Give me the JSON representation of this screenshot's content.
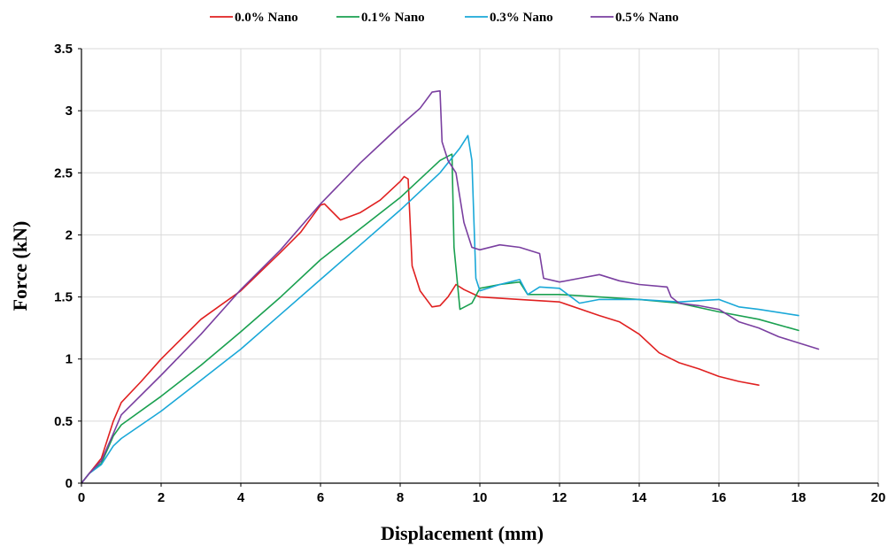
{
  "chart_data": {
    "type": "line",
    "xlabel": "Displacement (mm)",
    "ylabel": "Force (kN)",
    "xlim": [
      0,
      20
    ],
    "ylim": [
      0,
      3.5
    ],
    "x_ticks": [
      0,
      2,
      4,
      6,
      8,
      10,
      12,
      14,
      16,
      18,
      20
    ],
    "y_ticks": [
      0,
      0.5,
      1,
      1.5,
      2,
      2.5,
      3,
      3.5
    ],
    "x_tick_labels": [
      "0",
      "2",
      "4",
      "6",
      "8",
      "10",
      "12",
      "14",
      "16",
      "18",
      "20"
    ],
    "y_tick_labels": [
      "0",
      "0.5",
      "1",
      "1.5",
      "2",
      "2.5",
      "3",
      "3.5"
    ],
    "grid": true,
    "legend_position": "top",
    "series": [
      {
        "name": "0.0% Nano",
        "color": "#e02020",
        "x": [
          0,
          0.2,
          0.5,
          0.8,
          1,
          1.5,
          2,
          3,
          4,
          5,
          5.5,
          6,
          6.1,
          6.5,
          7,
          7.5,
          8,
          8.1,
          8.2,
          8.3,
          8.5,
          8.8,
          9,
          9.2,
          9.4,
          9.6,
          10,
          11,
          12,
          13,
          13.5,
          14,
          14.5,
          15,
          15.5,
          16,
          16.5,
          17
        ],
        "y": [
          0,
          0.08,
          0.2,
          0.5,
          0.65,
          0.82,
          1.0,
          1.32,
          1.55,
          1.86,
          2.02,
          2.24,
          2.25,
          2.12,
          2.18,
          2.28,
          2.43,
          2.47,
          2.45,
          1.75,
          1.55,
          1.42,
          1.43,
          1.5,
          1.6,
          1.56,
          1.5,
          1.48,
          1.46,
          1.35,
          1.3,
          1.2,
          1.05,
          0.97,
          0.92,
          0.86,
          0.82,
          0.79
        ]
      },
      {
        "name": "0.1% Nano",
        "color": "#1aa050",
        "x": [
          0,
          0.2,
          0.5,
          0.8,
          1,
          2,
          3,
          4,
          5,
          6,
          7,
          8,
          8.5,
          9,
          9.3,
          9.35,
          9.5,
          9.8,
          10,
          10.5,
          11,
          11.2,
          12,
          13,
          14,
          15,
          16,
          17,
          18
        ],
        "y": [
          0,
          0.08,
          0.16,
          0.38,
          0.47,
          0.7,
          0.95,
          1.22,
          1.5,
          1.8,
          2.05,
          2.3,
          2.45,
          2.6,
          2.65,
          1.9,
          1.4,
          1.45,
          1.57,
          1.6,
          1.62,
          1.52,
          1.52,
          1.5,
          1.48,
          1.45,
          1.38,
          1.32,
          1.23
        ]
      },
      {
        "name": "0.3% Nano",
        "color": "#1aa8d8",
        "x": [
          0,
          0.2,
          0.5,
          0.8,
          1,
          2,
          3,
          4,
          5,
          6,
          7,
          8,
          9,
          9.5,
          9.7,
          9.8,
          9.9,
          10,
          10.5,
          11,
          11.2,
          11.5,
          12,
          12.5,
          13,
          14,
          15,
          15.5,
          16,
          16.5,
          17,
          18
        ],
        "y": [
          0,
          0.08,
          0.15,
          0.3,
          0.36,
          0.58,
          0.83,
          1.08,
          1.36,
          1.64,
          1.92,
          2.2,
          2.5,
          2.7,
          2.8,
          2.6,
          1.65,
          1.55,
          1.6,
          1.64,
          1.52,
          1.58,
          1.57,
          1.45,
          1.48,
          1.48,
          1.46,
          1.47,
          1.48,
          1.42,
          1.4,
          1.35
        ]
      },
      {
        "name": "0.5% Nano",
        "color": "#7a3fa0",
        "x": [
          0,
          0.2,
          0.5,
          0.8,
          1,
          2,
          3,
          4,
          5,
          6,
          7,
          7.5,
          8,
          8.5,
          8.8,
          9,
          9.05,
          9.2,
          9.4,
          9.6,
          9.8,
          10,
          10.5,
          11,
          11.5,
          11.6,
          12,
          12.5,
          13,
          13.5,
          14,
          14.7,
          14.8,
          15,
          15.5,
          16,
          16.5,
          17,
          17.5,
          18,
          18.5
        ],
        "y": [
          0,
          0.08,
          0.18,
          0.4,
          0.55,
          0.87,
          1.2,
          1.56,
          1.88,
          2.25,
          2.58,
          2.73,
          2.88,
          3.02,
          3.15,
          3.16,
          2.75,
          2.6,
          2.5,
          2.1,
          1.9,
          1.88,
          1.92,
          1.9,
          1.85,
          1.65,
          1.62,
          1.65,
          1.68,
          1.63,
          1.6,
          1.58,
          1.5,
          1.45,
          1.43,
          1.4,
          1.3,
          1.25,
          1.18,
          1.13,
          1.08
        ]
      }
    ]
  }
}
